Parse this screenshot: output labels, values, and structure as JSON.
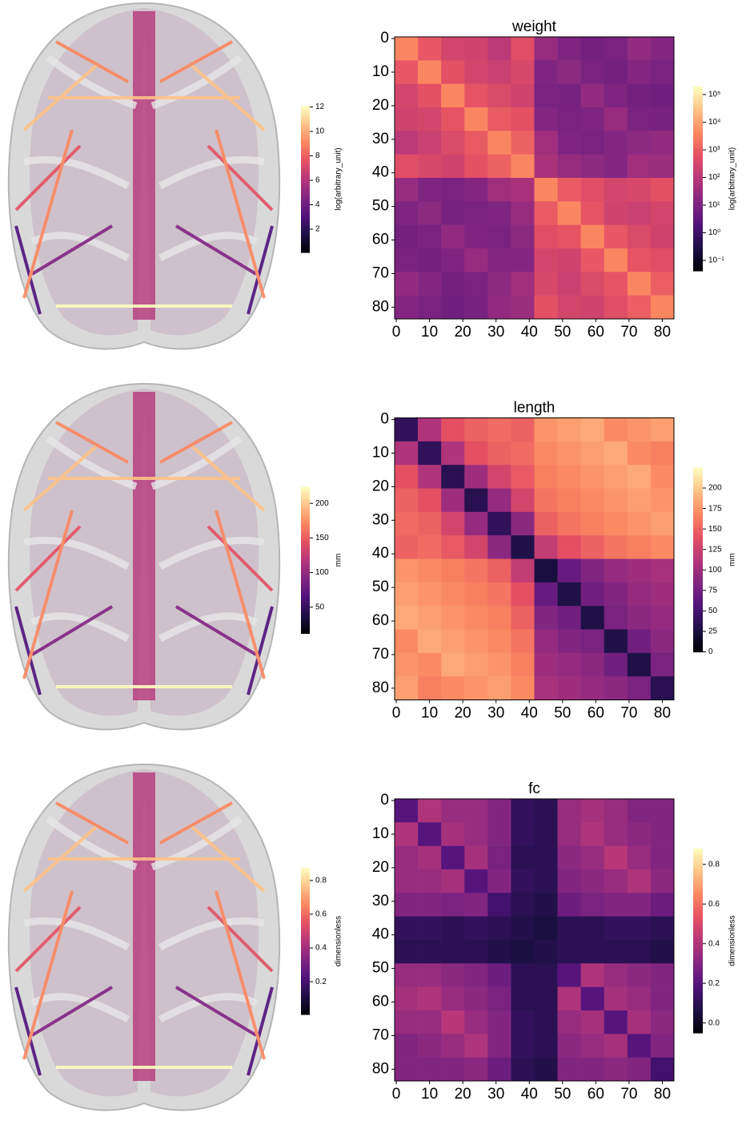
{
  "chart_data": [
    {
      "type": "brain",
      "colorbar": {
        "label": "log(arbitrary_unit)",
        "cmap": "magma",
        "ylim": [
          0.1,
          12.1
        ],
        "yticks": [
          2,
          4,
          6,
          8,
          10,
          12
        ]
      }
    },
    {
      "type": "heatmap",
      "title": "weight",
      "xlim": [
        -0.5,
        83.5
      ],
      "ylim": [
        83.5,
        -0.5
      ],
      "xticks": [
        0,
        10,
        20,
        30,
        40,
        50,
        60,
        70,
        80
      ],
      "yticks": [
        0,
        10,
        20,
        30,
        40,
        50,
        60,
        70,
        80
      ],
      "colorbar": {
        "label": "log(arbitrary_unit)",
        "cmap": "magma",
        "log": true,
        "ylim": [
          0.042,
          195000
        ],
        "yticks": [
          {
            "value": 0.1,
            "label": "10⁻¹"
          },
          {
            "value": 1,
            "label": "10⁰"
          },
          {
            "value": 10,
            "label": "10¹"
          },
          {
            "value": 100,
            "label": "10²"
          },
          {
            "value": 1000,
            "label": "10³"
          },
          {
            "value": 10000,
            "label": "10⁴"
          },
          {
            "value": 100000,
            "label": "10⁵"
          }
        ]
      },
      "matrix": [
        [
          4000,
          800,
          300,
          250,
          120,
          500,
          30,
          12,
          8,
          10,
          25,
          15
        ],
        [
          800,
          4000,
          600,
          300,
          200,
          350,
          12,
          20,
          10,
          8,
          15,
          10
        ],
        [
          300,
          600,
          4000,
          700,
          400,
          250,
          10,
          9,
          25,
          12,
          8,
          7
        ],
        [
          250,
          300,
          700,
          4000,
          900,
          600,
          15,
          10,
          12,
          30,
          10,
          9
        ],
        [
          120,
          200,
          400,
          900,
          4000,
          1200,
          40,
          12,
          10,
          15,
          20,
          25
        ],
        [
          500,
          350,
          250,
          600,
          1200,
          4000,
          60,
          30,
          20,
          15,
          40,
          35
        ],
        [
          30,
          12,
          10,
          15,
          40,
          60,
          4000,
          900,
          500,
          300,
          350,
          600
        ],
        [
          12,
          20,
          9,
          10,
          12,
          30,
          900,
          4000,
          700,
          250,
          200,
          300
        ],
        [
          8,
          10,
          25,
          12,
          10,
          20,
          500,
          700,
          4000,
          800,
          400,
          250
        ],
        [
          10,
          8,
          12,
          30,
          15,
          15,
          300,
          250,
          800,
          4000,
          700,
          500
        ],
        [
          25,
          15,
          8,
          10,
          20,
          40,
          350,
          200,
          400,
          700,
          4000,
          1000
        ],
        [
          15,
          10,
          7,
          9,
          25,
          35,
          600,
          300,
          250,
          500,
          1000,
          4000
        ]
      ]
    },
    {
      "type": "brain",
      "colorbar": {
        "label": "mm",
        "cmap": "magma",
        "ylim": [
          12,
          224
        ],
        "yticks": [
          50,
          100,
          150,
          200
        ]
      }
    },
    {
      "type": "heatmap",
      "title": "length",
      "xlim": [
        -0.5,
        83.5
      ],
      "ylim": [
        83.5,
        -0.5
      ],
      "xticks": [
        0,
        10,
        20,
        30,
        40,
        50,
        60,
        70,
        80
      ],
      "yticks": [
        0,
        10,
        20,
        30,
        40,
        50,
        60,
        70,
        80
      ],
      "colorbar": {
        "label": "mm",
        "cmap": "magma",
        "ylim": [
          0,
          225
        ],
        "yticks": [
          0,
          25,
          50,
          75,
          100,
          125,
          150,
          175,
          200
        ]
      },
      "matrix": [
        [
          40,
          110,
          140,
          150,
          155,
          150,
          175,
          180,
          185,
          170,
          175,
          180
        ],
        [
          110,
          40,
          110,
          140,
          150,
          155,
          170,
          175,
          180,
          185,
          170,
          165
        ],
        [
          140,
          110,
          35,
          100,
          130,
          145,
          165,
          170,
          175,
          180,
          185,
          170
        ],
        [
          150,
          140,
          100,
          35,
          95,
          130,
          160,
          165,
          170,
          175,
          180,
          175
        ],
        [
          155,
          150,
          130,
          95,
          40,
          90,
          150,
          160,
          165,
          170,
          175,
          180
        ],
        [
          150,
          155,
          145,
          130,
          90,
          30,
          120,
          140,
          150,
          160,
          165,
          170
        ],
        [
          175,
          170,
          165,
          160,
          150,
          120,
          25,
          70,
          85,
          95,
          100,
          105
        ],
        [
          180,
          175,
          170,
          165,
          160,
          140,
          70,
          30,
          75,
          85,
          95,
          100
        ],
        [
          185,
          180,
          175,
          170,
          165,
          150,
          85,
          75,
          30,
          80,
          90,
          95
        ],
        [
          170,
          185,
          180,
          175,
          170,
          160,
          95,
          85,
          80,
          30,
          75,
          90
        ],
        [
          175,
          170,
          185,
          180,
          175,
          165,
          100,
          95,
          90,
          75,
          30,
          80
        ],
        [
          180,
          165,
          170,
          175,
          180,
          170,
          105,
          100,
          95,
          90,
          80,
          35
        ]
      ]
    },
    {
      "type": "brain",
      "colorbar": {
        "label": "dimensionless",
        "cmap": "magma",
        "ylim": [
          0.006,
          0.875
        ],
        "yticks": [
          0.2,
          0.4,
          0.6,
          0.8
        ]
      }
    },
    {
      "type": "heatmap",
      "title": "fc",
      "xlim": [
        -0.5,
        83.5
      ],
      "ylim": [
        83.5,
        -0.5
      ],
      "xticks": [
        0,
        10,
        20,
        30,
        40,
        50,
        60,
        70,
        80
      ],
      "yticks": [
        0,
        10,
        20,
        30,
        40,
        50,
        60,
        70,
        80
      ],
      "colorbar": {
        "label": "dimensionless",
        "cmap": "magma",
        "ylim": [
          -0.05,
          0.88
        ],
        "yticks": [
          {
            "value": 0,
            "label": "0.0"
          },
          0.2,
          0.4,
          0.6,
          0.8
        ]
      },
      "matrix": [
        [
          0.2,
          0.4,
          0.35,
          0.35,
          0.3,
          0.12,
          0.1,
          0.35,
          0.38,
          0.35,
          0.3,
          0.3
        ],
        [
          0.4,
          0.2,
          0.38,
          0.35,
          0.3,
          0.12,
          0.1,
          0.35,
          0.4,
          0.35,
          0.32,
          0.3
        ],
        [
          0.35,
          0.38,
          0.2,
          0.38,
          0.28,
          0.1,
          0.1,
          0.32,
          0.35,
          0.42,
          0.35,
          0.3
        ],
        [
          0.35,
          0.35,
          0.38,
          0.2,
          0.3,
          0.12,
          0.1,
          0.3,
          0.32,
          0.35,
          0.4,
          0.32
        ],
        [
          0.3,
          0.3,
          0.28,
          0.3,
          0.15,
          0.1,
          0.08,
          0.25,
          0.28,
          0.3,
          0.3,
          0.25
        ],
        [
          0.12,
          0.12,
          0.1,
          0.12,
          0.1,
          0.08,
          0.06,
          0.1,
          0.1,
          0.12,
          0.12,
          0.1
        ],
        [
          0.1,
          0.1,
          0.1,
          0.1,
          0.08,
          0.06,
          0.08,
          0.1,
          0.1,
          0.1,
          0.1,
          0.08
        ],
        [
          0.35,
          0.35,
          0.32,
          0.3,
          0.25,
          0.1,
          0.1,
          0.2,
          0.4,
          0.35,
          0.32,
          0.3
        ],
        [
          0.38,
          0.4,
          0.35,
          0.32,
          0.28,
          0.1,
          0.1,
          0.4,
          0.2,
          0.38,
          0.35,
          0.3
        ],
        [
          0.35,
          0.35,
          0.42,
          0.35,
          0.3,
          0.12,
          0.1,
          0.35,
          0.38,
          0.2,
          0.38,
          0.32
        ],
        [
          0.3,
          0.32,
          0.35,
          0.4,
          0.3,
          0.12,
          0.1,
          0.32,
          0.35,
          0.38,
          0.2,
          0.3
        ],
        [
          0.3,
          0.3,
          0.3,
          0.32,
          0.25,
          0.1,
          0.08,
          0.3,
          0.3,
          0.32,
          0.3,
          0.15
        ]
      ]
    }
  ]
}
